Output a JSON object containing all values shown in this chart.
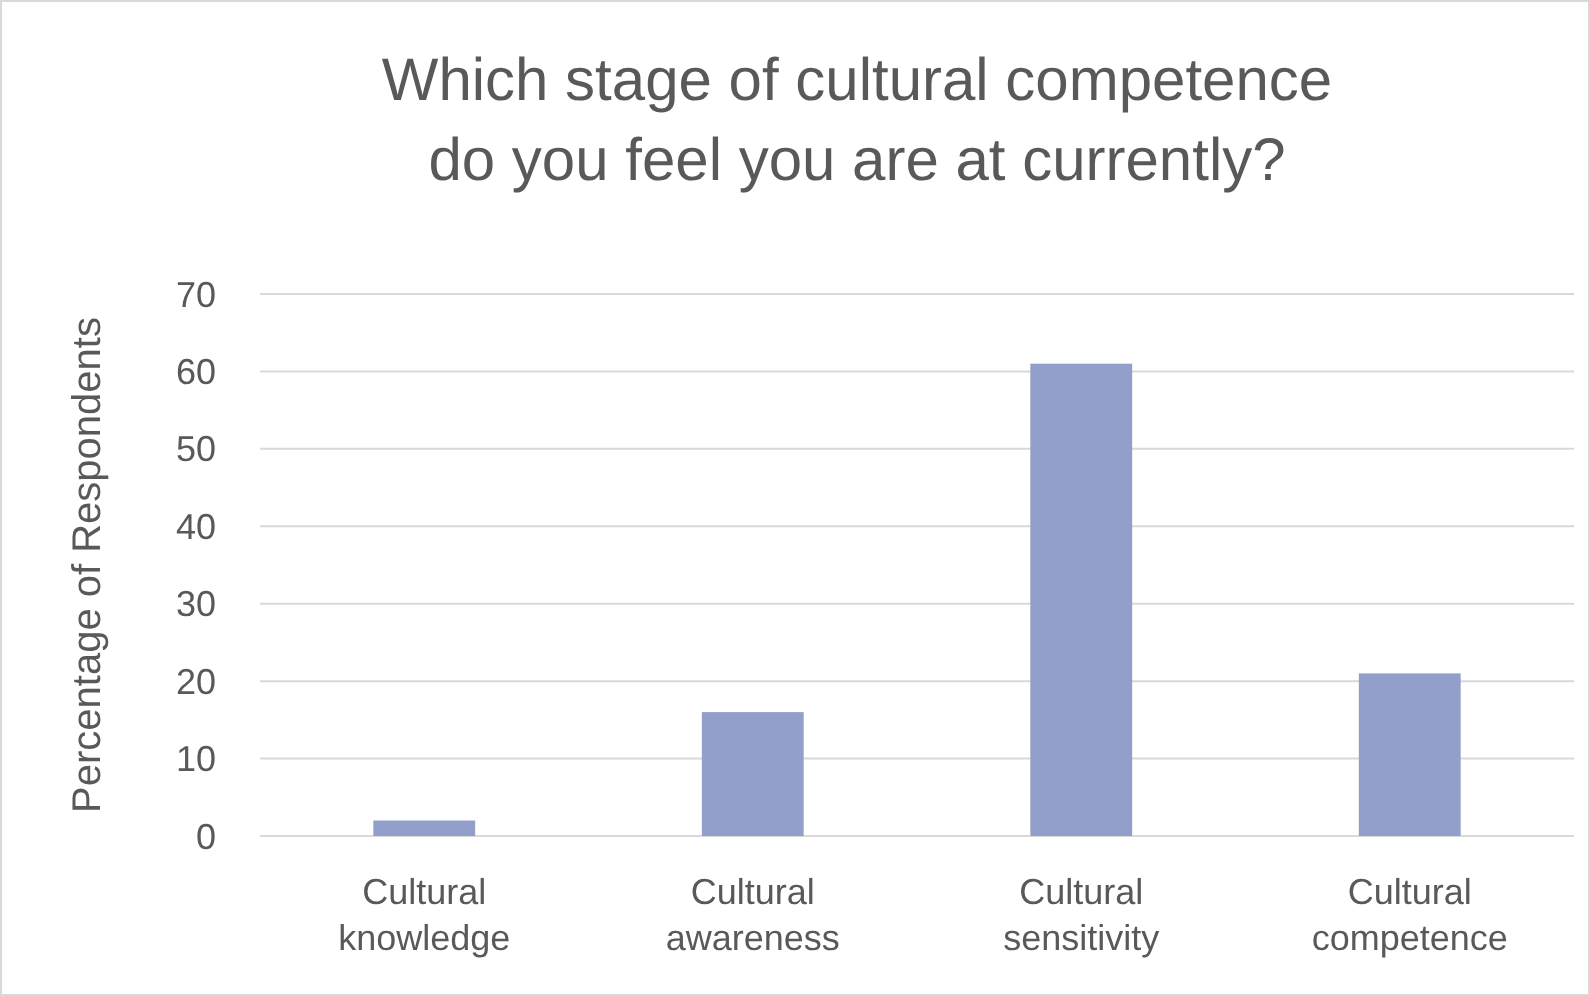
{
  "chart_data": {
    "type": "bar",
    "title": "Which stage of cultural competence do you feel you are at currently?",
    "ylabel": "Percentage of Respondents",
    "categories": [
      "Cultural knowledge",
      "Cultural awareness",
      "Cultural sensitivity",
      "Cultural competence"
    ],
    "values": [
      2,
      16,
      61,
      21
    ],
    "color": "#929fca",
    "ylim": [
      0,
      70
    ],
    "yticks": [
      0,
      10,
      20,
      30,
      40,
      50,
      60,
      70
    ],
    "grid": "y"
  }
}
